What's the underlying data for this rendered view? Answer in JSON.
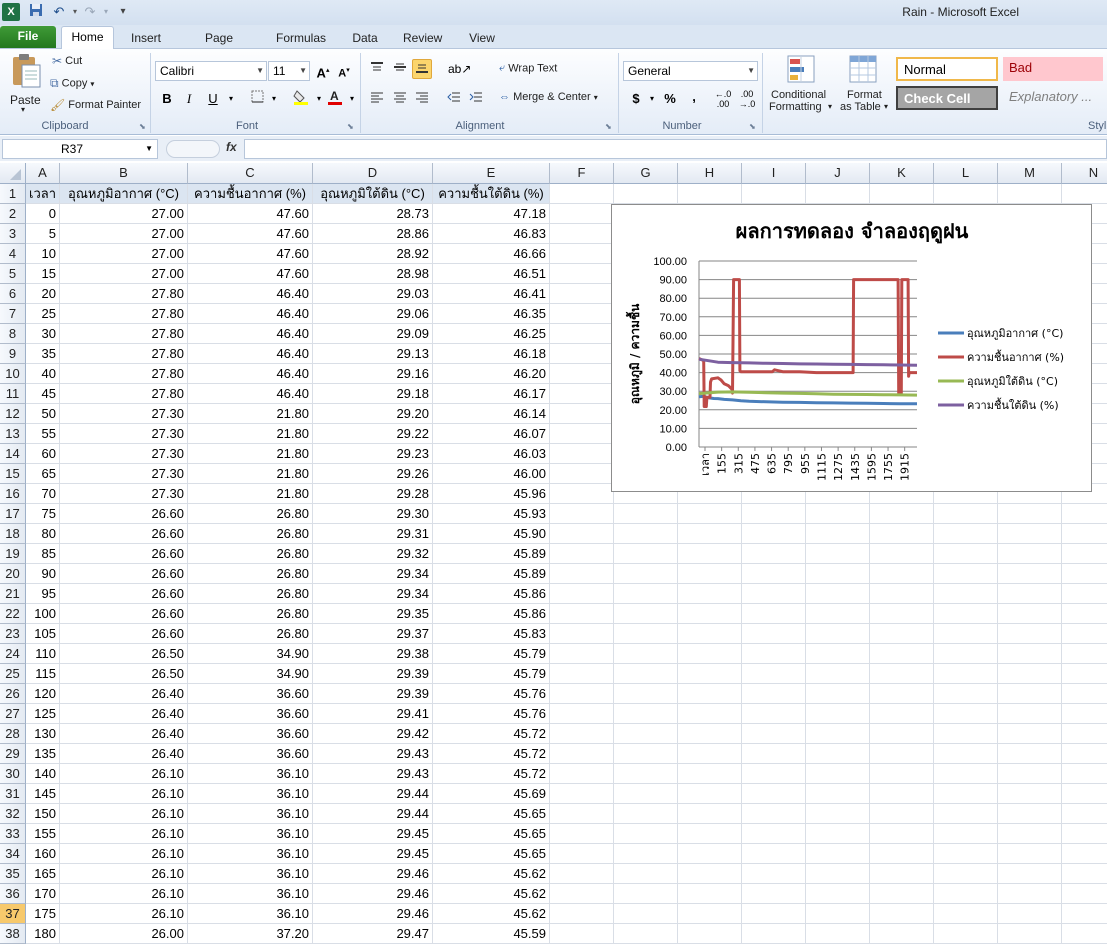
{
  "window": {
    "title": "Rain  -  Microsoft Excel"
  },
  "ribbon": {
    "tabs": [
      "File",
      "Home",
      "Insert",
      "Page Layout",
      "Formulas",
      "Data",
      "Review",
      "View"
    ],
    "clipboard": {
      "paste": "Paste",
      "cut": "Cut",
      "copy": "Copy",
      "format_painter": "Format Painter",
      "group": "Clipboard"
    },
    "font": {
      "name": "Calibri",
      "size": "11",
      "group": "Font"
    },
    "alignment": {
      "wrap_text": "Wrap Text",
      "merge_center": "Merge & Center",
      "group": "Alignment"
    },
    "number": {
      "format": "General",
      "group": "Number",
      "currency": "$",
      "percent": "%",
      "comma": ","
    },
    "styles": {
      "conditional_formatting_1": "Conditional",
      "conditional_formatting_2": "Formatting",
      "format_table_1": "Format",
      "format_table_2": "as Table",
      "normal": "Normal",
      "bad": "Bad",
      "check_cell": "Check Cell",
      "explanatory": "Explanatory ...",
      "group": "Styl"
    }
  },
  "formula_bar": {
    "name_box": "R37",
    "fx": "fx",
    "value": ""
  },
  "columns": [
    "A",
    "B",
    "C",
    "D",
    "E",
    "F",
    "G",
    "H",
    "I",
    "J",
    "K",
    "L",
    "M",
    "N"
  ],
  "selected_column": "R",
  "selected_row": 37,
  "headers": [
    "เวลา",
    "อุณหภูมิอากาศ (°C)",
    "ความชื้นอากาศ (%)",
    "อุณหภูมิใต้ดิน (°C)",
    "ความชื้นใต้ดิน (%)"
  ],
  "rows": [
    [
      "0",
      "27.00",
      "47.60",
      "28.73",
      "47.18"
    ],
    [
      "5",
      "27.00",
      "47.60",
      "28.86",
      "46.83"
    ],
    [
      "10",
      "27.00",
      "47.60",
      "28.92",
      "46.66"
    ],
    [
      "15",
      "27.00",
      "47.60",
      "28.98",
      "46.51"
    ],
    [
      "20",
      "27.80",
      "46.40",
      "29.03",
      "46.41"
    ],
    [
      "25",
      "27.80",
      "46.40",
      "29.06",
      "46.35"
    ],
    [
      "30",
      "27.80",
      "46.40",
      "29.09",
      "46.25"
    ],
    [
      "35",
      "27.80",
      "46.40",
      "29.13",
      "46.18"
    ],
    [
      "40",
      "27.80",
      "46.40",
      "29.16",
      "46.20"
    ],
    [
      "45",
      "27.80",
      "46.40",
      "29.18",
      "46.17"
    ],
    [
      "50",
      "27.30",
      "21.80",
      "29.20",
      "46.14"
    ],
    [
      "55",
      "27.30",
      "21.80",
      "29.22",
      "46.07"
    ],
    [
      "60",
      "27.30",
      "21.80",
      "29.23",
      "46.03"
    ],
    [
      "65",
      "27.30",
      "21.80",
      "29.26",
      "46.00"
    ],
    [
      "70",
      "27.30",
      "21.80",
      "29.28",
      "45.96"
    ],
    [
      "75",
      "26.60",
      "26.80",
      "29.30",
      "45.93"
    ],
    [
      "80",
      "26.60",
      "26.80",
      "29.31",
      "45.90"
    ],
    [
      "85",
      "26.60",
      "26.80",
      "29.32",
      "45.89"
    ],
    [
      "90",
      "26.60",
      "26.80",
      "29.34",
      "45.89"
    ],
    [
      "95",
      "26.60",
      "26.80",
      "29.34",
      "45.86"
    ],
    [
      "100",
      "26.60",
      "26.80",
      "29.35",
      "45.86"
    ],
    [
      "105",
      "26.60",
      "26.80",
      "29.37",
      "45.83"
    ],
    [
      "110",
      "26.50",
      "34.90",
      "29.38",
      "45.79"
    ],
    [
      "115",
      "26.50",
      "34.90",
      "29.39",
      "45.79"
    ],
    [
      "120",
      "26.40",
      "36.60",
      "29.39",
      "45.76"
    ],
    [
      "125",
      "26.40",
      "36.60",
      "29.41",
      "45.76"
    ],
    [
      "130",
      "26.40",
      "36.60",
      "29.42",
      "45.72"
    ],
    [
      "135",
      "26.40",
      "36.60",
      "29.43",
      "45.72"
    ],
    [
      "140",
      "26.10",
      "36.10",
      "29.43",
      "45.72"
    ],
    [
      "145",
      "26.10",
      "36.10",
      "29.44",
      "45.69"
    ],
    [
      "150",
      "26.10",
      "36.10",
      "29.44",
      "45.65"
    ],
    [
      "155",
      "26.10",
      "36.10",
      "29.45",
      "45.65"
    ],
    [
      "160",
      "26.10",
      "36.10",
      "29.45",
      "45.65"
    ],
    [
      "165",
      "26.10",
      "36.10",
      "29.46",
      "45.62"
    ],
    [
      "170",
      "26.10",
      "36.10",
      "29.46",
      "45.62"
    ],
    [
      "175",
      "26.10",
      "36.10",
      "29.46",
      "45.62"
    ],
    [
      "180",
      "26.00",
      "37.20",
      "29.47",
      "45.59"
    ]
  ],
  "chart_data": {
    "type": "line",
    "title": "ผลการทดลอง จำลองฤดูฝน",
    "ylabel": "อุณหภูมิ / ความชื้น",
    "ylim": [
      0,
      100
    ],
    "yticks": [
      "0.00",
      "10.00",
      "20.00",
      "30.00",
      "40.00",
      "50.00",
      "60.00",
      "70.00",
      "80.00",
      "90.00",
      "100.00"
    ],
    "xlim": [
      0,
      2080
    ],
    "xticks": [
      "เวลา",
      "155",
      "315",
      "475",
      "635",
      "795",
      "955",
      "1115",
      "1275",
      "1435",
      "1595",
      "1755",
      "1915"
    ],
    "grid": true,
    "legend": "right",
    "series": [
      {
        "name": "อุณหภูมิอากาศ (°C)",
        "color": "#4a7ebb",
        "x": [
          0,
          50,
          75,
          140,
          180,
          240,
          320,
          400,
          480,
          640,
          800,
          960,
          1120,
          1280,
          1440,
          1600,
          1760,
          1920,
          2080
        ],
        "y": [
          27,
          27.3,
          26.6,
          26.1,
          26,
          25.6,
          25.3,
          24.9,
          24.6,
          24.3,
          24.1,
          24,
          23.8,
          23.7,
          23.6,
          23.5,
          23.4,
          23.3,
          23.2
        ]
      },
      {
        "name": "ความชื้นอากาศ (%)",
        "color": "#be4b48",
        "x": [
          0,
          45,
          50,
          70,
          75,
          105,
          110,
          120,
          180,
          210,
          240,
          280,
          315,
          320,
          330,
          360,
          385,
          390,
          400,
          480,
          560,
          640,
          700,
          720,
          800,
          960,
          1120,
          1280,
          1440,
          1470,
          1475,
          1900,
          1905,
          1930,
          1935,
          1990,
          1995,
          2000,
          2005,
          2080
        ],
        "y": [
          47.6,
          46.4,
          21.8,
          21.8,
          26.8,
          26.8,
          34.9,
          36.6,
          37.2,
          36,
          34,
          33,
          31,
          29,
          90,
          90,
          90,
          41,
          40.5,
          40.5,
          40.5,
          40.5,
          40.5,
          41.5,
          40.5,
          40.5,
          40,
          40,
          40,
          40,
          90,
          90,
          29,
          29,
          90,
          90,
          90,
          38,
          40,
          40
        ]
      },
      {
        "name": "อุณหภูมิใต้ดิน (°C)",
        "color": "#98b954",
        "x": [
          0,
          180,
          320,
          480,
          640,
          800,
          960,
          1120,
          1280,
          1440,
          1600,
          1760,
          1920,
          2080
        ],
        "y": [
          28.7,
          29.5,
          29.6,
          29.4,
          29.2,
          29,
          28.8,
          28.6,
          28.4,
          28.3,
          28.2,
          28.1,
          28,
          27.9
        ]
      },
      {
        "name": "ความชื้นใต้ดิน (%)",
        "color": "#7d60a0",
        "x": [
          0,
          180,
          320,
          480,
          640,
          800,
          960,
          1120,
          1280,
          1440,
          1600,
          1760,
          1920,
          2080
        ],
        "y": [
          47.2,
          45.6,
          45.4,
          45.2,
          45,
          44.9,
          44.7,
          44.6,
          44.5,
          44.4,
          44.3,
          44.2,
          44.1,
          44
        ]
      }
    ]
  }
}
